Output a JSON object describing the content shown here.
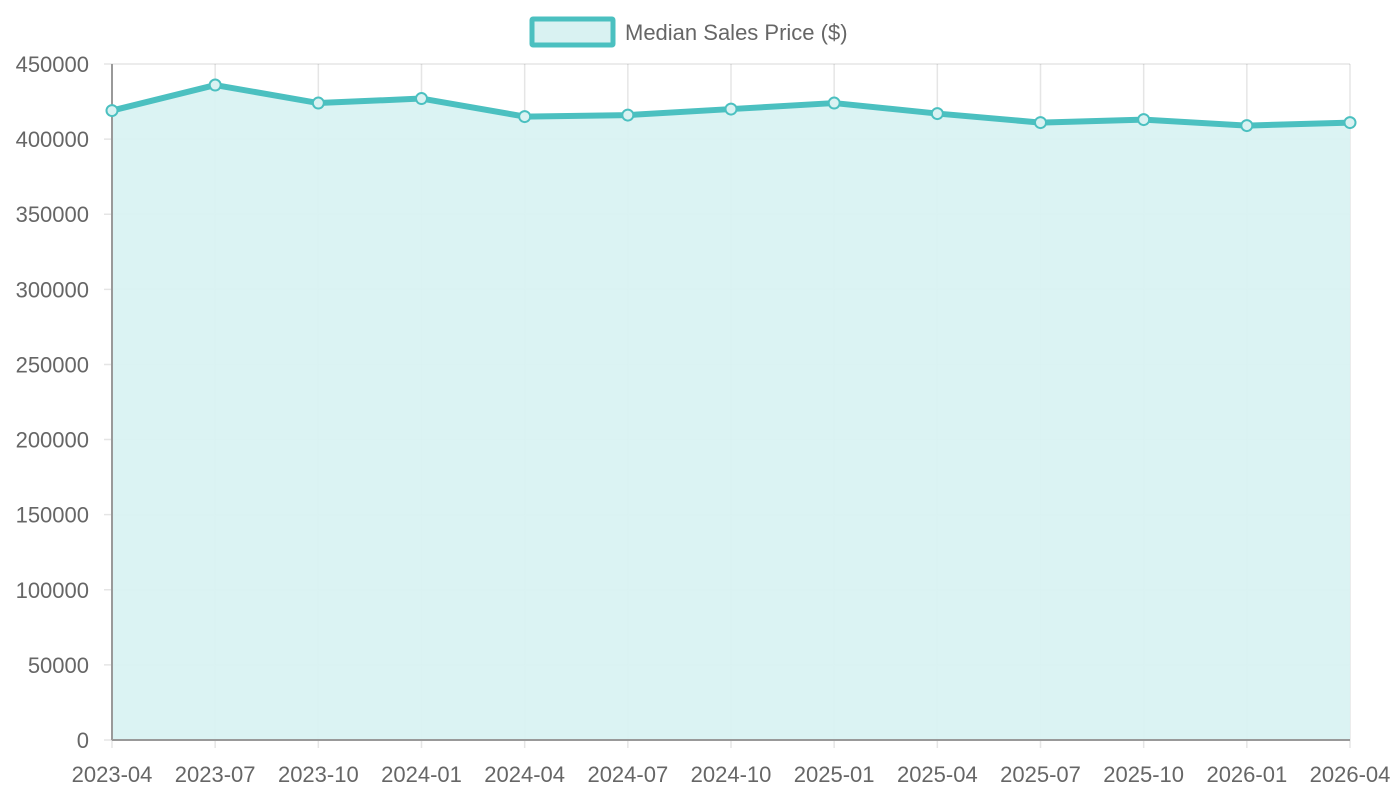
{
  "chart_data": {
    "type": "area",
    "legend": {
      "label": "Median Sales Price ($)",
      "position": "top"
    },
    "series": [
      {
        "name": "Median Sales Price ($)",
        "color": "#4bc0c0",
        "fill": "#d9f2f2",
        "x": [
          "2023-04",
          "2023-07",
          "2023-10",
          "2024-01",
          "2024-04",
          "2024-07",
          "2024-10",
          "2025-01",
          "2025-04",
          "2025-07",
          "2025-10",
          "2026-01",
          "2026-04"
        ],
        "values": [
          419000,
          436000,
          424000,
          427000,
          415000,
          416000,
          420000,
          424000,
          417000,
          411000,
          413000,
          409000,
          411000
        ]
      }
    ],
    "ylim": [
      0,
      450000
    ],
    "yticks": [
      0,
      50000,
      100000,
      150000,
      200000,
      250000,
      300000,
      350000,
      400000,
      450000
    ],
    "grid": true
  }
}
